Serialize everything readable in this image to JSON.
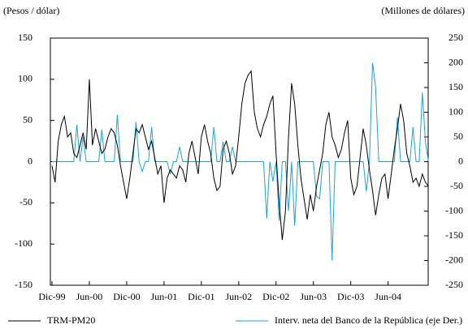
{
  "chart_data": {
    "type": "line",
    "y_label": "(Pesos / dólar)",
    "y2_label": "(Millones de dólares)",
    "categories": [
      "Dic-99",
      null,
      null,
      null,
      null,
      null,
      null,
      null,
      null,
      null,
      null,
      null,
      "Jun-00",
      null,
      null,
      null,
      null,
      null,
      null,
      null,
      null,
      null,
      null,
      null,
      "Dic-00",
      null,
      null,
      null,
      null,
      null,
      null,
      null,
      null,
      null,
      null,
      null,
      "Jun-01",
      null,
      null,
      null,
      null,
      null,
      null,
      null,
      null,
      null,
      null,
      null,
      "Dic-01",
      null,
      null,
      null,
      null,
      null,
      null,
      null,
      null,
      null,
      null,
      null,
      "Jun-02",
      null,
      null,
      null,
      null,
      null,
      null,
      null,
      null,
      null,
      null,
      null,
      "Dic-02",
      null,
      null,
      null,
      null,
      null,
      null,
      null,
      null,
      null,
      null,
      null,
      "Jun-03",
      null,
      null,
      null,
      null,
      null,
      null,
      null,
      null,
      null,
      null,
      null,
      "Dic-03",
      null,
      null,
      null,
      null,
      null,
      null,
      null,
      null,
      null,
      null,
      null,
      "Jun-04",
      null,
      null,
      null,
      null,
      null,
      null,
      null,
      null,
      null,
      null,
      null,
      null,
      null
    ],
    "series": [
      {
        "name": "TRM-PM20",
        "color": "#000000",
        "axis": "y",
        "values": [
          -5,
          -25,
          25,
          45,
          55,
          30,
          35,
          10,
          5,
          20,
          35,
          15,
          100,
          20,
          40,
          25,
          10,
          15,
          30,
          40,
          35,
          20,
          -5,
          -25,
          -45,
          -20,
          10,
          40,
          35,
          45,
          30,
          15,
          25,
          5,
          -15,
          -5,
          -50,
          -20,
          -10,
          -15,
          -20,
          -5,
          -10,
          -25,
          10,
          25,
          5,
          -15,
          30,
          45,
          25,
          10,
          -20,
          -35,
          -30,
          15,
          25,
          10,
          -15,
          -5,
          30,
          70,
          95,
          105,
          110,
          60,
          40,
          30,
          45,
          55,
          70,
          80,
          10,
          -50,
          -95,
          -60,
          30,
          95,
          70,
          20,
          -20,
          -45,
          -70,
          -40,
          -60,
          -30,
          -10,
          10,
          45,
          60,
          30,
          20,
          5,
          15,
          35,
          50,
          -20,
          -40,
          -30,
          5,
          40,
          20,
          -10,
          -35,
          -65,
          -40,
          -20,
          -15,
          -45,
          -15,
          15,
          40,
          70,
          50,
          10,
          -5,
          -25,
          -20,
          -30,
          -15,
          -25,
          -30
        ]
      },
      {
        "name": "Interv. neta del Banco de la República (eje Der.)",
        "color": "#1aa3dc",
        "axis": "y2",
        "values": [
          0,
          0,
          0,
          0,
          0,
          0,
          0,
          0,
          75,
          0,
          50,
          0,
          0,
          0,
          0,
          0,
          65,
          0,
          0,
          0,
          0,
          95,
          0,
          0,
          0,
          0,
          0,
          80,
          0,
          -20,
          0,
          0,
          70,
          0,
          0,
          0,
          0,
          0,
          -25,
          0,
          0,
          30,
          0,
          0,
          0,
          0,
          0,
          0,
          0,
          0,
          0,
          0,
          70,
          0,
          0,
          40,
          0,
          0,
          30,
          0,
          0,
          0,
          0,
          0,
          0,
          0,
          0,
          0,
          0,
          -115,
          0,
          -40,
          0,
          -120,
          0,
          0,
          -100,
          0,
          -130,
          0,
          0,
          0,
          0,
          0,
          0,
          -70,
          -75,
          0,
          0,
          0,
          -200,
          0,
          0,
          0,
          0,
          0,
          0,
          0,
          0,
          0,
          0,
          -60,
          0,
          200,
          150,
          0,
          0,
          0,
          0,
          0,
          0,
          90,
          0,
          0,
          0,
          0,
          70,
          0,
          0,
          140,
          40,
          0
        ]
      }
    ],
    "ylim": [
      -150,
      150
    ],
    "yticks": [
      -150,
      -100,
      -50,
      0,
      50,
      100,
      150
    ],
    "y2lim": [
      -250,
      250
    ],
    "y2ticks": [
      -250,
      -200,
      -150,
      -100,
      -50,
      0,
      50,
      100,
      150,
      200,
      250
    ],
    "grid": false
  }
}
